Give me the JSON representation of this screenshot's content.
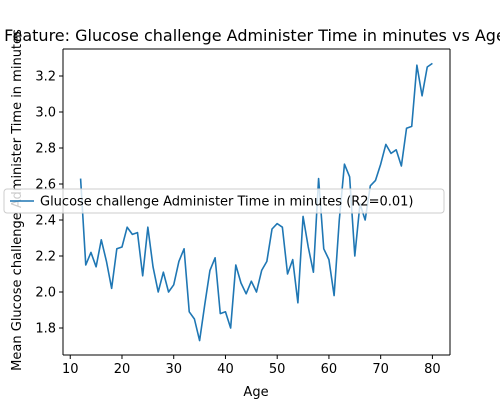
{
  "chart_data": {
    "type": "line",
    "title": "Feature: Glucose challenge Administer Time in minutes vs Age",
    "xlabel": "Age",
    "ylabel": "Mean Glucose challenge Administer Time in minutes",
    "xlim": [
      8.6,
      83.4
    ],
    "ylim": [
      1.65,
      3.35
    ],
    "xticks": [
      10,
      20,
      30,
      40,
      50,
      60,
      70,
      80
    ],
    "yticks": [
      1.8,
      2.0,
      2.2,
      2.4,
      2.6,
      2.8,
      3.0,
      3.2
    ],
    "xtick_labels": [
      "10",
      "20",
      "30",
      "40",
      "50",
      "60",
      "70",
      "80"
    ],
    "ytick_labels": [
      "1.8",
      "2.0",
      "2.2",
      "2.4",
      "2.6",
      "2.8",
      "3.0",
      "3.2"
    ],
    "grid": false,
    "legend_position": "center-left",
    "series": [
      {
        "name": "Glucose challenge Administer Time in minutes (R2=0.01)",
        "color": "#1f77b4",
        "x": [
          12,
          13,
          14,
          15,
          16,
          17,
          18,
          19,
          20,
          21,
          22,
          23,
          24,
          25,
          26,
          27,
          28,
          29,
          30,
          31,
          32,
          33,
          34,
          35,
          36,
          37,
          38,
          39,
          40,
          41,
          42,
          43,
          44,
          45,
          46,
          47,
          48,
          49,
          50,
          51,
          52,
          53,
          54,
          55,
          56,
          57,
          58,
          59,
          60,
          61,
          62,
          63,
          64,
          65,
          66,
          67,
          68,
          69,
          70,
          71,
          72,
          73,
          74,
          75,
          76,
          77,
          78,
          79,
          80
        ],
        "y": [
          2.63,
          2.15,
          2.22,
          2.14,
          2.29,
          2.17,
          2.02,
          2.24,
          2.25,
          2.36,
          2.32,
          2.33,
          2.09,
          2.36,
          2.14,
          2.0,
          2.11,
          2.0,
          2.04,
          2.17,
          2.24,
          1.89,
          1.85,
          1.73,
          1.93,
          2.12,
          2.19,
          1.88,
          1.89,
          1.8,
          2.15,
          2.05,
          1.99,
          2.06,
          2.0,
          2.12,
          2.17,
          2.35,
          2.38,
          2.36,
          2.1,
          2.18,
          1.94,
          2.42,
          2.25,
          2.11,
          2.63,
          2.24,
          2.18,
          1.98,
          2.4,
          2.71,
          2.64,
          2.2,
          2.49,
          2.4,
          2.59,
          2.62,
          2.71,
          2.82,
          2.77,
          2.79,
          2.7,
          2.91,
          2.92,
          3.26,
          3.09,
          3.25,
          3.27
        ]
      }
    ]
  }
}
